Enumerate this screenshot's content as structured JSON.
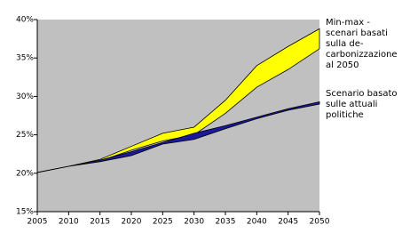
{
  "chart_data": {
    "type": "range-area",
    "x": [
      2005,
      2010,
      2015,
      2020,
      2025,
      2030,
      2035,
      2040,
      2045,
      2050
    ],
    "xlim": [
      2005,
      2050
    ],
    "xticks": [
      2005,
      2010,
      2015,
      2020,
      2025,
      2030,
      2035,
      2040,
      2045,
      2050
    ],
    "ylim": [
      15,
      40
    ],
    "yticks": [
      {
        "value": 15,
        "label": "15%"
      },
      {
        "value": 20,
        "label": "20%"
      },
      {
        "value": 25,
        "label": "25%"
      },
      {
        "value": 30,
        "label": "30%"
      },
      {
        "value": 35,
        "label": "35%"
      },
      {
        "value": 40,
        "label": "40%"
      }
    ],
    "background": "#c0c0c0",
    "series": [
      {
        "name": [
          "Min-max -",
          "scenari basati",
          "sulla de-",
          "carbonizzazione",
          "al 2050"
        ],
        "color": "#ffff00",
        "high": [
          20.1,
          20.9,
          21.8,
          23.5,
          25.2,
          26.0,
          29.5,
          34.0,
          36.5,
          38.8
        ],
        "low": [
          20.1,
          20.9,
          21.6,
          23.0,
          24.2,
          25.0,
          27.8,
          31.2,
          33.5,
          36.2
        ]
      },
      {
        "name": [
          "Scenario basato",
          "sulle attuali",
          "politiche"
        ],
        "color": "#1a1a9a",
        "high": [
          20.1,
          20.9,
          21.7,
          22.8,
          24.0,
          25.2,
          26.2,
          27.3,
          28.4,
          29.3
        ],
        "low": [
          20.1,
          20.9,
          21.5,
          22.3,
          23.8,
          24.4,
          25.8,
          27.1,
          28.2,
          29.0
        ]
      }
    ]
  }
}
